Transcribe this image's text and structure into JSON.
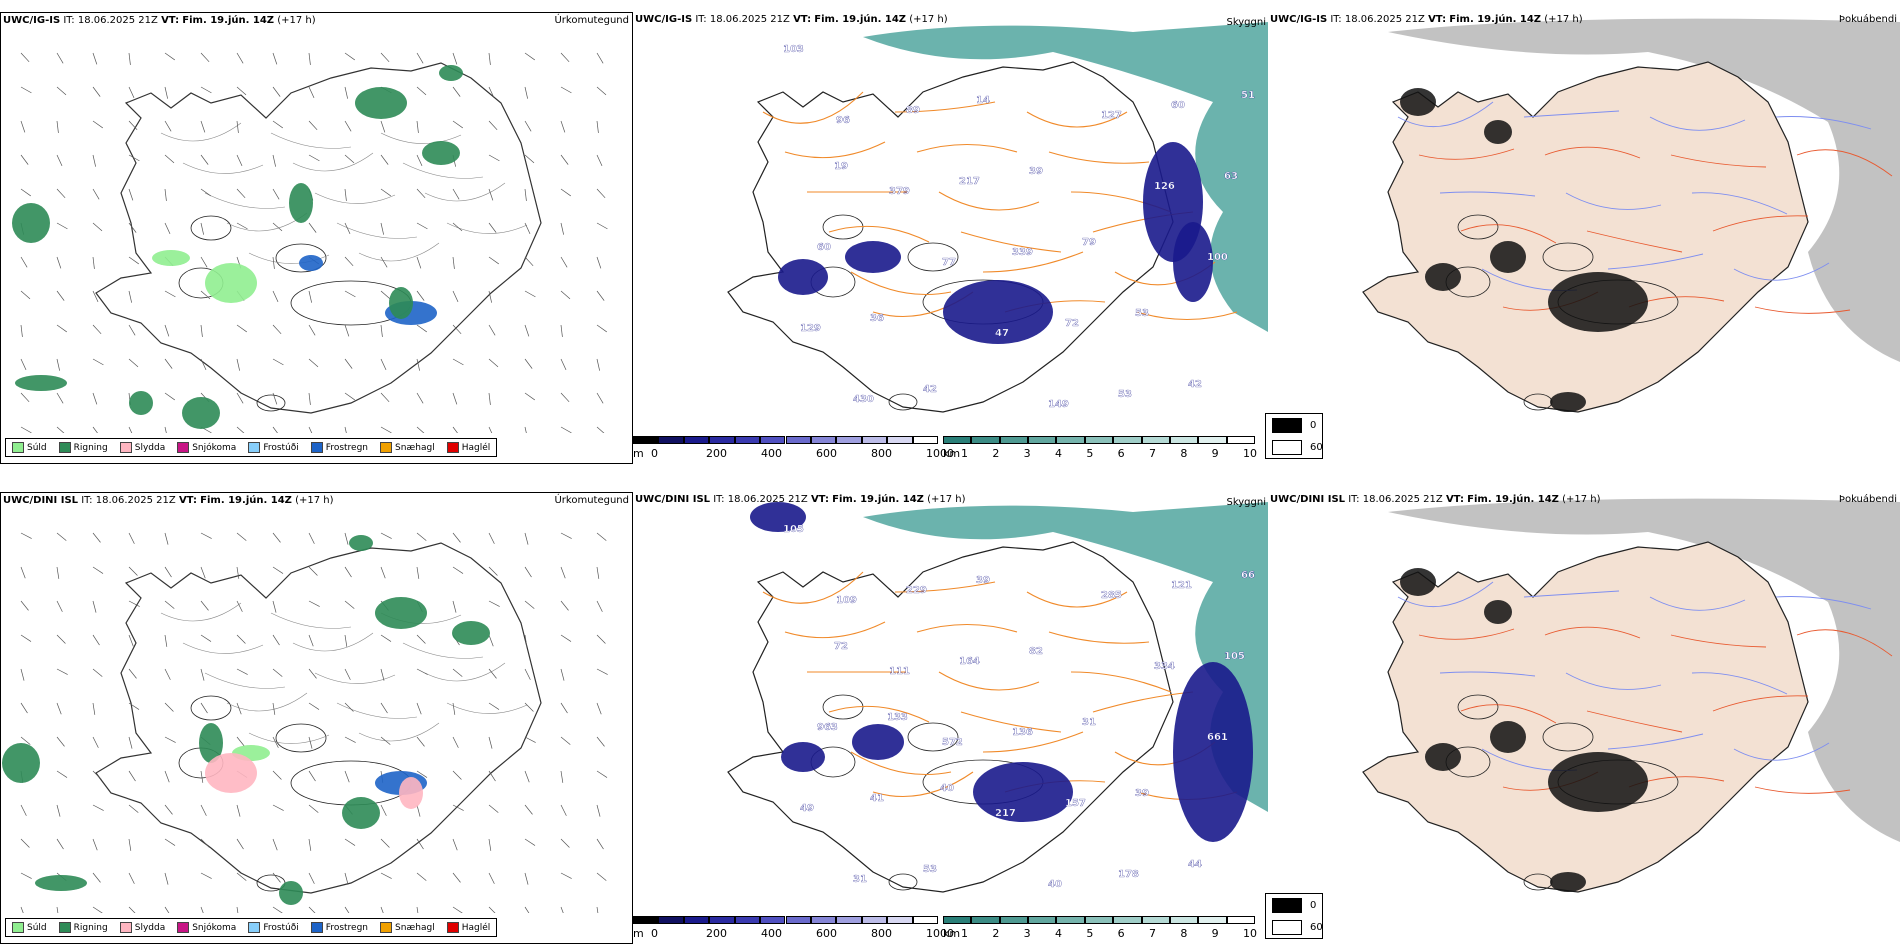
{
  "rows": [
    {
      "precip": {
        "model": "UWC/IG-IS",
        "it": "IT: 18.06.2025 21Z",
        "vt_label": "VT:",
        "vt": "Fim. 19.jún. 14Z",
        "lead": "(+17 h)",
        "name": "Úrkomutegund"
      },
      "cloud": {
        "model": "UWC/IG-IS",
        "it": "IT: 18.06.2025 21Z",
        "vt_label": "VT:",
        "vt": "Fim. 19.jún. 14Z",
        "lead": "(+17 h)",
        "name": "Skyggni",
        "labels": [
          "103",
          "96",
          "379",
          "77",
          "47",
          "149",
          "127",
          "126",
          "100",
          "129",
          "430",
          "89",
          "217",
          "339",
          "72",
          "53",
          "60",
          "63",
          "60",
          "36",
          "42",
          "14",
          "39",
          "79",
          "53",
          "42",
          "51",
          "19"
        ]
      },
      "fog": {
        "model": "UWC/IG-IS",
        "it": "IT: 18.06.2025 21Z",
        "vt_label": "VT:",
        "vt": "Fim. 19.jún. 14Z",
        "lead": "(+17 h)",
        "name": "Þokuábendi"
      }
    },
    {
      "precip": {
        "model": "UWC/DINI ISL",
        "it": "IT: 18.06.2025 21Z",
        "vt_label": "VT:",
        "vt": "Fim. 19.jún. 14Z",
        "lead": "(+17 h)",
        "name": "Úrkomutegund"
      },
      "cloud": {
        "model": "UWC/DINI ISL",
        "it": "IT: 18.06.2025 21Z",
        "vt_label": "VT:",
        "vt": "Fim. 19.jún. 14Z",
        "lead": "(+17 h)",
        "name": "Skyggni",
        "labels": [
          "105",
          "109",
          "111",
          "572",
          "217",
          "40",
          "285",
          "334",
          "661",
          "49",
          "31",
          "229",
          "164",
          "136",
          "157",
          "178",
          "121",
          "105",
          "963",
          "41",
          "53",
          "39",
          "82",
          "31",
          "39",
          "44",
          "66",
          "72",
          "133",
          "40"
        ]
      },
      "fog": {
        "model": "UWC/DINI ISL",
        "it": "IT: 18.06.2025 21Z",
        "vt_label": "VT:",
        "vt": "Fim. 19.jún. 14Z",
        "lead": "(+17 h)",
        "name": "Þokuábendi"
      }
    }
  ],
  "precip_legend": [
    {
      "label": "Súld",
      "color": "#90ee90"
    },
    {
      "label": "Rigning",
      "color": "#2e8b57"
    },
    {
      "label": "Slydda",
      "color": "#ffb6c1"
    },
    {
      "label": "Snjókoma",
      "color": "#c71585"
    },
    {
      "label": "Frostúði",
      "color": "#87cefa"
    },
    {
      "label": "Frostregn",
      "color": "#1e64c8"
    },
    {
      "label": "Snæhagl",
      "color": "#f0a000"
    },
    {
      "label": "Haglél",
      "color": "#e00000"
    }
  ],
  "cloud_bar": {
    "unit": "m",
    "ticks": [
      "0",
      "200",
      "400",
      "600",
      "800",
      "1000"
    ],
    "colors": [
      "#000000",
      "#101060",
      "#1a1a8c",
      "#2a2aa0",
      "#3a3ab0",
      "#5050c0",
      "#6a6acc",
      "#8585d6",
      "#a0a0e0",
      "#bcbce8",
      "#d8d8f2",
      "#ffffff"
    ]
  },
  "vis_bar": {
    "unit": "km",
    "ticks": [
      "1",
      "2",
      "3",
      "4",
      "5",
      "6",
      "7",
      "8",
      "9",
      "10"
    ],
    "colors": [
      "#2a7f78",
      "#3c8c85",
      "#4f9a92",
      "#62a79f",
      "#76b4ad",
      "#8bc1ba",
      "#a0cec8",
      "#b5dad5",
      "#cbe6e2",
      "#e1f1ef",
      "#ffffff"
    ]
  },
  "fog_legend": [
    {
      "label": "0",
      "color": "#000000"
    },
    {
      "label": "60",
      "color": "#ffffff"
    }
  ]
}
